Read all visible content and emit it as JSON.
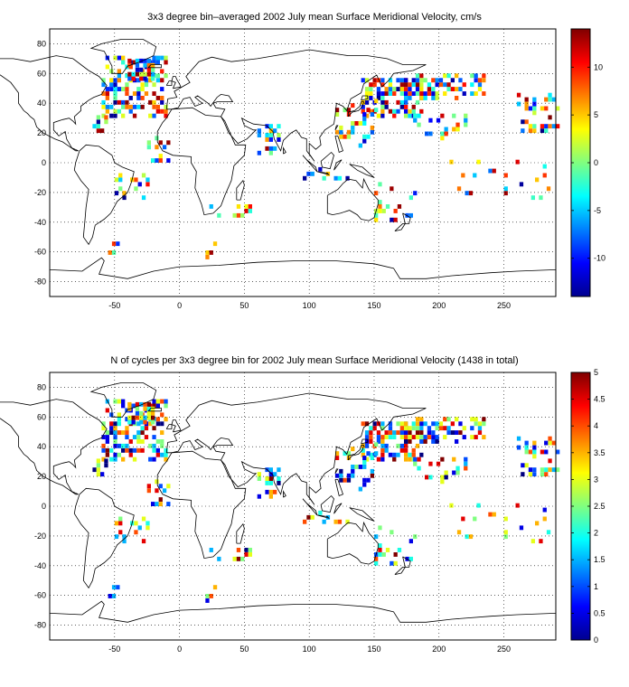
{
  "panels": [
    {
      "title": "3x3 degree bin–averaged 2002 July mean Surface Meridional Velocity, cm/s",
      "x_ticks": [
        "-50",
        "0",
        "50",
        "100",
        "150",
        "200",
        "250"
      ],
      "y_ticks": [
        "80",
        "60",
        "40",
        "20",
        "0",
        "-20",
        "-40",
        "-60",
        "-80"
      ],
      "colorbar": {
        "range": [
          -14,
          14
        ],
        "ticks": [
          "10",
          "5",
          "0",
          "-5",
          "-10"
        ],
        "tick_values": [
          10,
          5,
          0,
          -5,
          -10
        ],
        "colormap": "jet"
      }
    },
    {
      "title": "N of cycles per 3x3 degree bin for 2002 July mean Surface Meridional Velocity (1438 in total)",
      "x_ticks": [
        "-50",
        "0",
        "50",
        "100",
        "150",
        "200",
        "250"
      ],
      "y_ticks": [
        "80",
        "60",
        "40",
        "20",
        "0",
        "-20",
        "-40",
        "-60",
        "-80"
      ],
      "colorbar": {
        "range": [
          0,
          5
        ],
        "ticks": [
          "5",
          "4.5",
          "4",
          "3.5",
          "3",
          "2.5",
          "2",
          "1.5",
          "1",
          "0.5",
          "0"
        ],
        "tick_values": [
          5,
          4.5,
          4,
          3.5,
          3,
          2.5,
          2,
          1.5,
          1,
          0.5,
          0
        ],
        "colormap": "jet"
      }
    }
  ],
  "map_extent": {
    "lon": [
      -100,
      290
    ],
    "lat": [
      -90,
      90
    ]
  },
  "grid": "dotted",
  "bin_size_deg": 3
}
